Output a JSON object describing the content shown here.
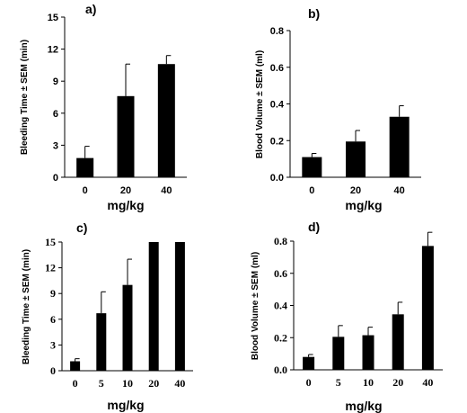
{
  "chart_data": [
    {
      "panel_label": "a)",
      "type": "bar",
      "categories": [
        "0",
        "20",
        "40"
      ],
      "values": [
        1.8,
        7.6,
        10.6
      ],
      "errors": [
        1.1,
        3.0,
        0.8
      ],
      "xlabel": "mg/kg",
      "ylabel": "Bleeding Time ± SEM (min)",
      "ylim": [
        0,
        15
      ],
      "yticks": [
        "0",
        "3",
        "6",
        "9",
        "12",
        "15"
      ]
    },
    {
      "panel_label": "b)",
      "type": "bar",
      "categories": [
        "0",
        "20",
        "40"
      ],
      "values": [
        0.11,
        0.195,
        0.33
      ],
      "errors": [
        0.02,
        0.06,
        0.06
      ],
      "xlabel": "mg/kg",
      "ylabel": "Blood  Volume ± SEM  (ml)",
      "ylim": [
        0,
        0.8
      ],
      "yticks": [
        "0.0",
        "0.2",
        "0.4",
        "0.6",
        "0.8"
      ]
    },
    {
      "panel_label": "c)",
      "type": "bar",
      "categories": [
        "0",
        "5",
        "10",
        "20",
        "40"
      ],
      "values": [
        1.1,
        6.7,
        10.0,
        15.0,
        15.0
      ],
      "errors": [
        0.3,
        2.5,
        3.0,
        0,
        0
      ],
      "xlabel": "mg/kg",
      "ylabel": "Bleeding Time ± SEM (min)",
      "ylim": [
        0,
        15
      ],
      "yticks": [
        "0",
        "3",
        "6",
        "9",
        "12",
        "15"
      ]
    },
    {
      "panel_label": "d)",
      "type": "bar",
      "categories": [
        "0",
        "5",
        "10",
        "20",
        "40"
      ],
      "values": [
        0.08,
        0.205,
        0.215,
        0.345,
        0.77
      ],
      "errors": [
        0.015,
        0.07,
        0.05,
        0.075,
        0.085
      ],
      "xlabel": "mg/kg",
      "ylabel": "Blood Volume ± SEM (ml)",
      "ylim": [
        0,
        0.8
      ],
      "yticks": [
        "0.0",
        "0.2",
        "0.4",
        "0.6",
        "0.8"
      ]
    }
  ]
}
